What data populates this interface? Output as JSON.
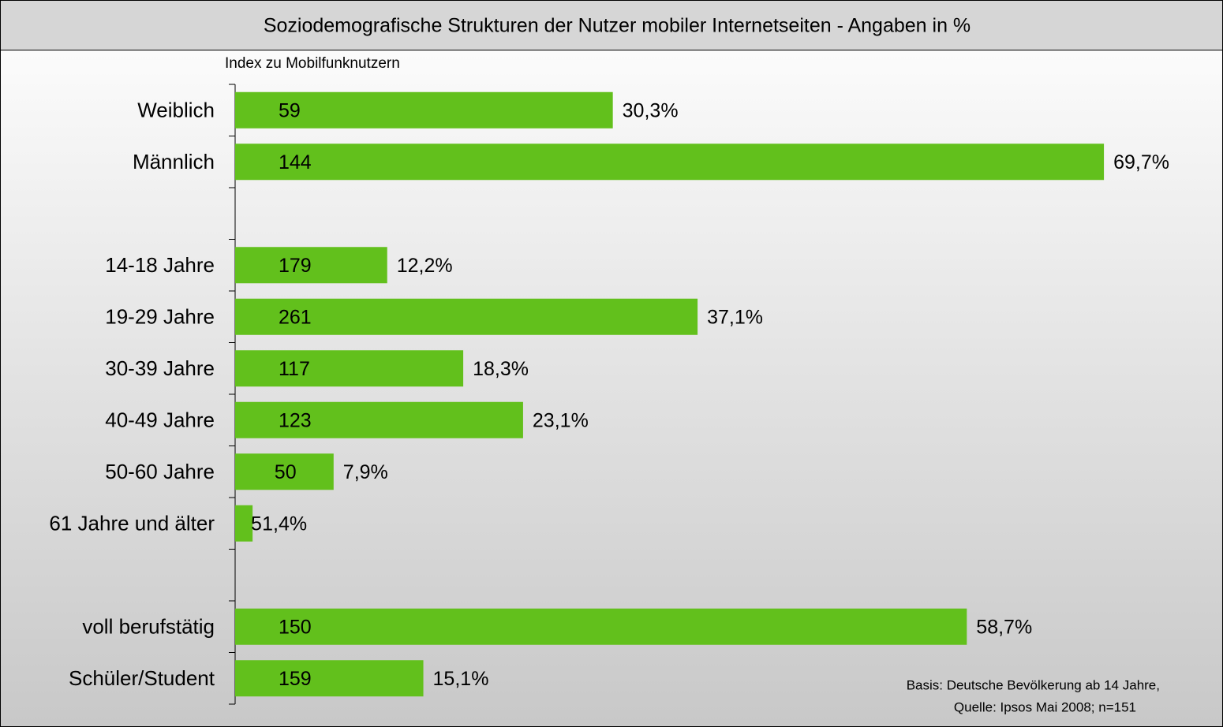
{
  "chart_data": {
    "type": "bar",
    "orientation": "horizontal",
    "title": "Soziodemografische Strukturen der Nutzer mobiler  Internetseiten - Angaben in %",
    "index_label": "Index zu Mobilfunknutzern",
    "categories": [
      "Weiblich",
      "Männlich",
      null,
      "14-18 Jahre",
      "19-29 Jahre",
      "30-39 Jahre",
      "40-49 Jahre",
      "50-60 Jahre",
      "61 Jahre und älter",
      null,
      "voll berufstätig",
      "Schüler/Student"
    ],
    "values": [
      30.3,
      69.7,
      null,
      12.2,
      37.1,
      18.3,
      23.1,
      7.9,
      1.4,
      null,
      58.7,
      15.1
    ],
    "value_labels": [
      "30,3%",
      "69,7%",
      null,
      "12,2%",
      "37,1%",
      "18,3%",
      "23,1%",
      "7,9%",
      "1,4%",
      null,
      "58,7%",
      "15,1%"
    ],
    "index_values": [
      59,
      144,
      null,
      179,
      261,
      117,
      123,
      50,
      5,
      null,
      150,
      159
    ],
    "color": "#62c01c",
    "xlim": [
      0,
      79
    ],
    "notes": [
      "Basis: Deutsche Bevölkerung ab 14 Jahre,",
      "Quelle: Ipsos Mai 2008; n=151"
    ]
  }
}
